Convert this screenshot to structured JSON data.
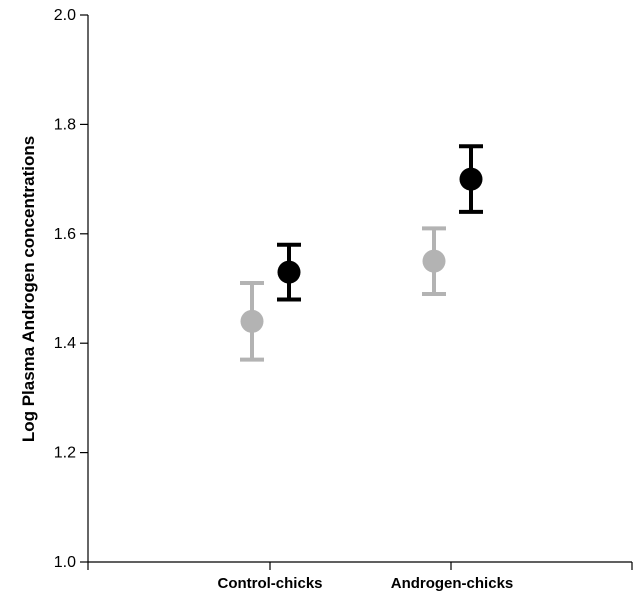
{
  "chart_data": {
    "type": "scatter",
    "title": "",
    "xlabel": "",
    "ylabel": "Log Plasma Androgen concentrations",
    "ylim": [
      1.0,
      2.0
    ],
    "yticks": [
      "1.0",
      "1.2",
      "1.4",
      "1.6",
      "1.8",
      "2.0"
    ],
    "categories": [
      "Control-chicks",
      "Androgen-chicks"
    ],
    "grid": false,
    "legend": "none",
    "series": [
      {
        "color": "#b3b3b3",
        "values": [
          1.44,
          1.55
        ],
        "error_low": [
          1.37,
          1.49
        ],
        "error_high": [
          1.51,
          1.61
        ]
      },
      {
        "color": "#000000",
        "values": [
          1.53,
          1.7
        ],
        "error_low": [
          1.48,
          1.64
        ],
        "error_high": [
          1.58,
          1.76
        ]
      }
    ]
  }
}
